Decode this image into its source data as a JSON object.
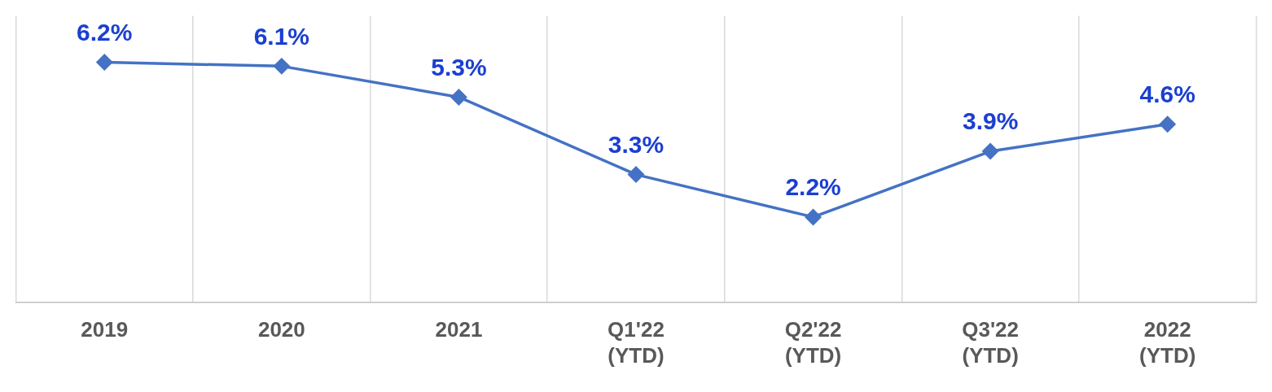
{
  "chart_data": {
    "type": "line",
    "categories": [
      "2019",
      "2020",
      "2021",
      "Q1'22 (YTD)",
      "Q2'22 (YTD)",
      "Q3'22 (YTD)",
      "2022 (YTD)"
    ],
    "series": [
      {
        "color": "#4472c4",
        "values": [
          6.2,
          6.1,
          5.3,
          3.3,
          2.2,
          3.9,
          4.6
        ],
        "value_labels": [
          "6.2%",
          "6.1%",
          "5.3%",
          "3.3%",
          "2.2%",
          "3.9%",
          "4.6%"
        ]
      }
    ],
    "ylim": [
      0,
      7.4
    ],
    "grid": "x",
    "marker": "diamond",
    "line_style": "solid",
    "legend": false
  }
}
